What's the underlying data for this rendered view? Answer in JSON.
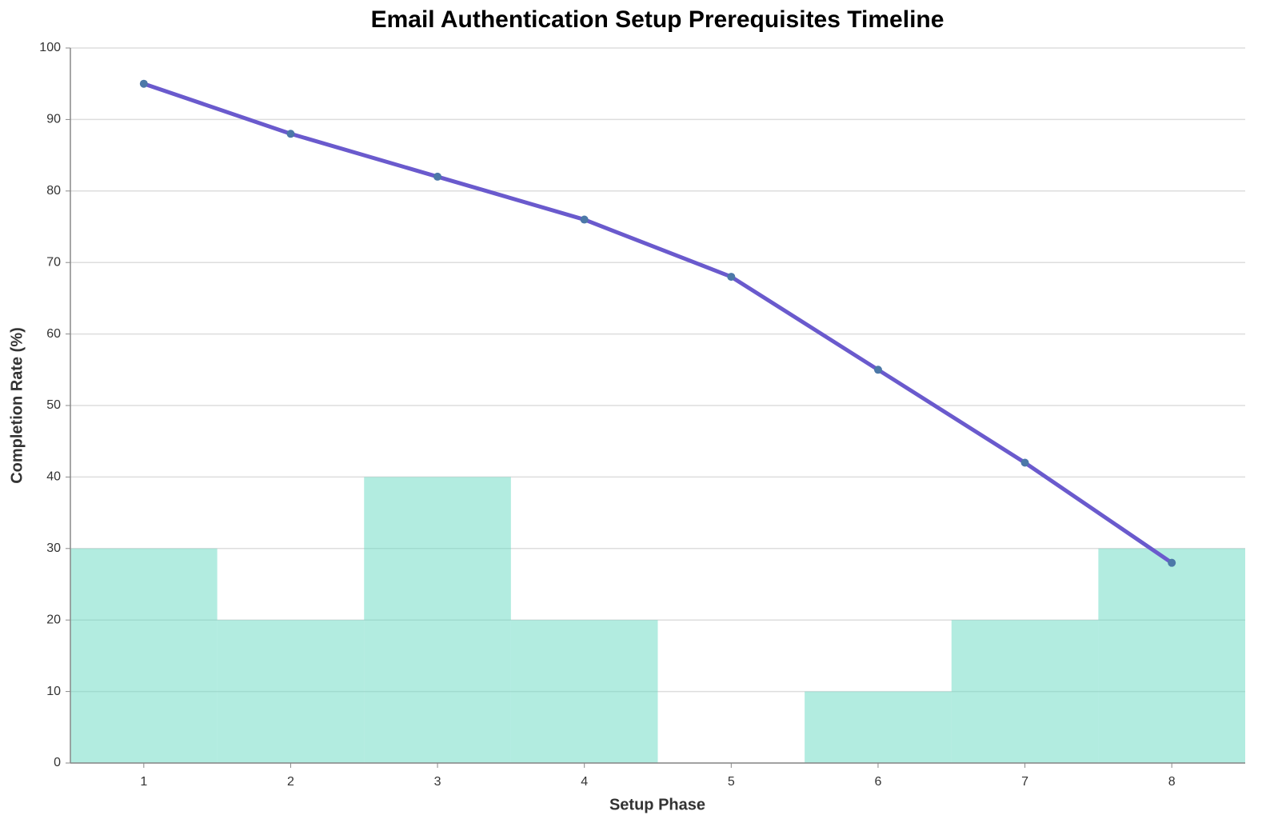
{
  "chart_data": {
    "type": "combo",
    "title": "Email Authentication Setup Prerequisites Timeline",
    "x_label": "Setup Phase",
    "y_label": "Completion Rate (%)",
    "x": [
      1,
      2,
      3,
      4,
      5,
      6,
      7,
      8
    ],
    "xlim": [
      0.5,
      8.5
    ],
    "xticks": [
      1,
      2,
      3,
      4,
      5,
      6,
      7,
      8
    ],
    "ylim": [
      0,
      100
    ],
    "yticks": [
      0,
      10,
      20,
      30,
      40,
      50,
      60,
      70,
      80,
      90,
      100
    ],
    "grid": true,
    "bars": {
      "color": "#66d9c2",
      "values": [
        30,
        20,
        40,
        20,
        0,
        10,
        20,
        30
      ]
    },
    "line": {
      "color": "#6a5acd",
      "point_color": "#4c78a8",
      "values": [
        95,
        88,
        82,
        76,
        68,
        55,
        42,
        28
      ]
    }
  }
}
